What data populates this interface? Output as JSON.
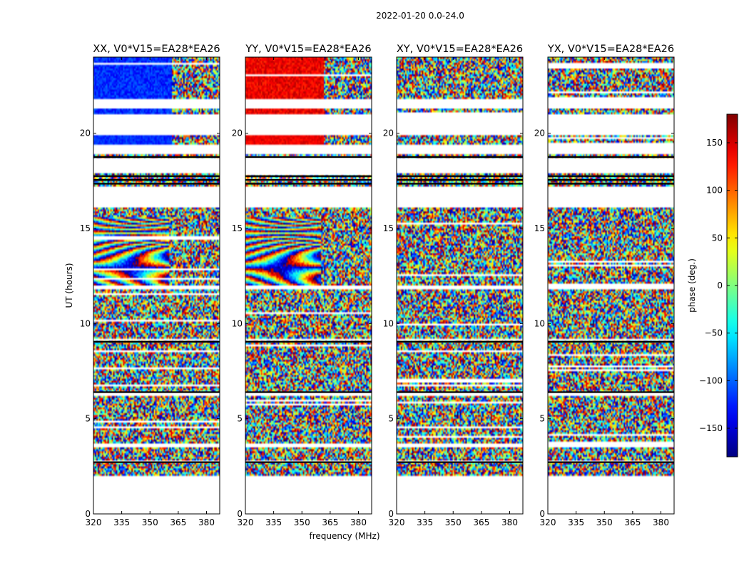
{
  "chart_data": {
    "type": "heatmap",
    "suptitle": "2022-01-20 0.0-24.0",
    "xlabel": "frequency (MHz)",
    "ylabel": "UT (hours)",
    "x_range": [
      320,
      387
    ],
    "y_range": [
      0,
      24
    ],
    "x_ticks": [
      320,
      335,
      350,
      365,
      380
    ],
    "y_ticks": [
      0,
      5,
      10,
      15,
      20
    ],
    "colorbar": {
      "label": "phase (deg.)",
      "range": [
        -180,
        180
      ],
      "ticks": [
        -150,
        -100,
        -50,
        0,
        50,
        100,
        150
      ],
      "colormap": "jet"
    },
    "panels": [
      {
        "title": "XX, V0*V15=EA28*EA26",
        "pol": "XX",
        "phase_offset_deg": -120
      },
      {
        "title": "YY, V0*V15=EA28*EA26",
        "pol": "YY",
        "phase_offset_deg": 140
      },
      {
        "title": "XY, V0*V15=EA28*EA26",
        "pol": "XY",
        "phase_offset_deg": null
      },
      {
        "title": "YX, V0*V15=EA28*EA26",
        "pol": "YX",
        "phase_offset_deg": null
      }
    ],
    "data_time_ranges_hours": [
      [
        2.05,
        2.7
      ],
      [
        2.85,
        3.55
      ],
      [
        3.7,
        6.2
      ],
      [
        6.45,
        9.1
      ],
      [
        9.2,
        11.85
      ],
      [
        12.0,
        16.1
      ],
      [
        17.2,
        17.9
      ],
      [
        18.7,
        18.85
      ],
      [
        19.4,
        19.85
      ],
      [
        21.0,
        21.25
      ],
      [
        21.8,
        24.0
      ]
    ],
    "fringe_time_range_hours": [
      12.0,
      15.6
    ],
    "fringe_note": "XX and YY panels show coherent phase fringes between ~12 and ~15.5 UT at 320-360 MHz; cross-hands are noise-like"
  }
}
